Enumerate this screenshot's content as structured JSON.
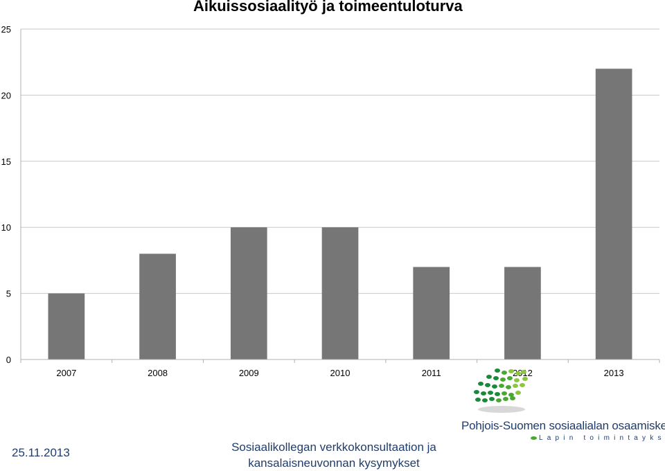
{
  "chart_data": {
    "type": "bar",
    "title": "Aikuissosiaalityö ja toimeentuloturva",
    "categories": [
      "2007",
      "2008",
      "2009",
      "2010",
      "2011",
      "2012",
      "2013"
    ],
    "values": [
      5,
      8,
      10,
      10,
      7,
      7,
      22
    ],
    "ylim": [
      0,
      25
    ],
    "yticks": [
      "0",
      "5",
      "10",
      "15",
      "20",
      "25"
    ],
    "grid": true,
    "legend": false,
    "bar_color": "#767676"
  },
  "footer": {
    "date": "25.11.2013",
    "caption_line1": "Sosiaalikollegan verkkokonsultaation ja",
    "caption_line2": "kansalaisneuvonnan kysymykset"
  },
  "logo": {
    "name": "Pohjois-Suomen sosiaalialan osaamiskeskus",
    "subtitle": "Lapin toimintayksikkö",
    "colors": [
      "#1a8a3a",
      "#4aa832",
      "#8cc63f"
    ]
  }
}
